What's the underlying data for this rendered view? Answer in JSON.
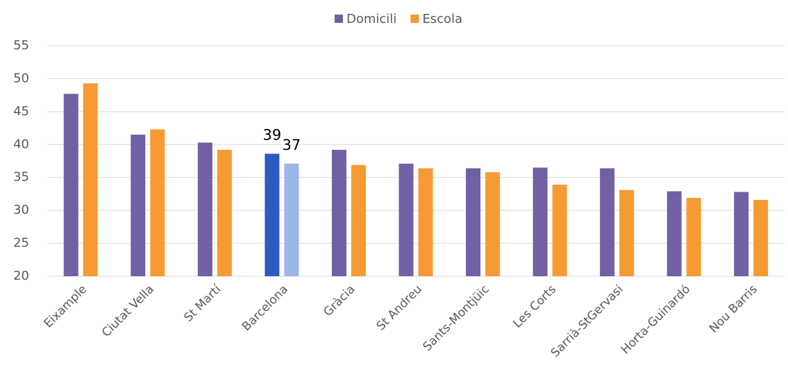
{
  "chart_data": {
    "type": "bar",
    "categories": [
      "Eixample",
      "Ciutat Vella",
      "St Martí",
      "Barcelona",
      "Gràcia",
      "St Andreu",
      "Sants-Montjüic",
      "Les Corts",
      "Sarrià-StGervasi",
      "Horta-Guinardó",
      "Nou Barris"
    ],
    "series": [
      {
        "name": "Domicili",
        "color": "#7160a3",
        "colors": [
          "#7160a3",
          "#7160a3",
          "#7160a3",
          "#2a5bbf",
          "#7160a3",
          "#7160a3",
          "#7160a3",
          "#7160a3",
          "#7160a3",
          "#7160a3",
          "#7160a3"
        ],
        "values": [
          47.7,
          41.5,
          40.3,
          38.6,
          39.2,
          37.1,
          36.4,
          36.5,
          36.4,
          32.9,
          32.8
        ],
        "value_labels": [
          null,
          null,
          null,
          "39",
          null,
          null,
          null,
          null,
          null,
          null,
          null
        ]
      },
      {
        "name": "Escola",
        "color": "#f79a33",
        "colors": [
          "#f79a33",
          "#f79a33",
          "#f79a33",
          "#9db6e8",
          "#f79a33",
          "#f79a33",
          "#f79a33",
          "#f79a33",
          "#f79a33",
          "#f79a33",
          "#f79a33"
        ],
        "values": [
          49.3,
          42.3,
          39.2,
          37.1,
          36.9,
          36.4,
          35.8,
          33.9,
          33.1,
          31.9,
          31.6
        ],
        "value_labels": [
          null,
          null,
          null,
          "37",
          null,
          null,
          null,
          null,
          null,
          null,
          null
        ]
      }
    ],
    "ylim": [
      20,
      55
    ],
    "yticks": [
      20,
      25,
      30,
      35,
      40,
      45,
      50,
      55
    ],
    "grid": true,
    "legend": "top"
  }
}
